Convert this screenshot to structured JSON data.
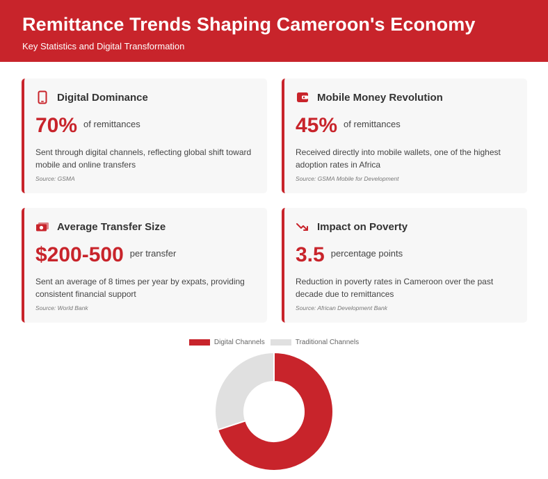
{
  "header": {
    "title": "Remittance Trends Shaping Cameroon's Economy",
    "subtitle": "Key Statistics and Digital Transformation"
  },
  "cards": [
    {
      "icon": "smartphone-icon",
      "title": "Digital Dominance",
      "value": "70%",
      "unit": "of remittances",
      "description": "Sent through digital channels, reflecting global shift toward mobile and online transfers",
      "source": "Source: GSMA"
    },
    {
      "icon": "wallet-icon",
      "title": "Mobile Money Revolution",
      "value": "45%",
      "unit": "of remittances",
      "description": "Received directly into mobile wallets, one of the highest adoption rates in Africa",
      "source": "Source: GSMA Mobile for Development"
    },
    {
      "icon": "money-bill-icon",
      "title": "Average Transfer Size",
      "value": "$200-500",
      "unit": "per transfer",
      "description": "Sent an average of 8 times per year by expats, providing consistent financial support",
      "source": "Source: World Bank"
    },
    {
      "icon": "trend-down-icon",
      "title": "Impact on Poverty",
      "value": "3.5",
      "unit": "percentage points",
      "description": "Reduction in poverty rates in Cameroon over the past decade due to remittances",
      "source": "Source: African Development Bank"
    }
  ],
  "colors": {
    "accent": "#c8242b",
    "traditional": "#e0e0e0",
    "card_bg": "#f7f7f7"
  },
  "chart_data": {
    "type": "pie",
    "style": "doughnut",
    "categories": [
      "Digital Channels",
      "Traditional Channels"
    ],
    "values": [
      70,
      30
    ],
    "colors": [
      "#c8242b",
      "#e0e0e0"
    ],
    "legend": "top"
  }
}
